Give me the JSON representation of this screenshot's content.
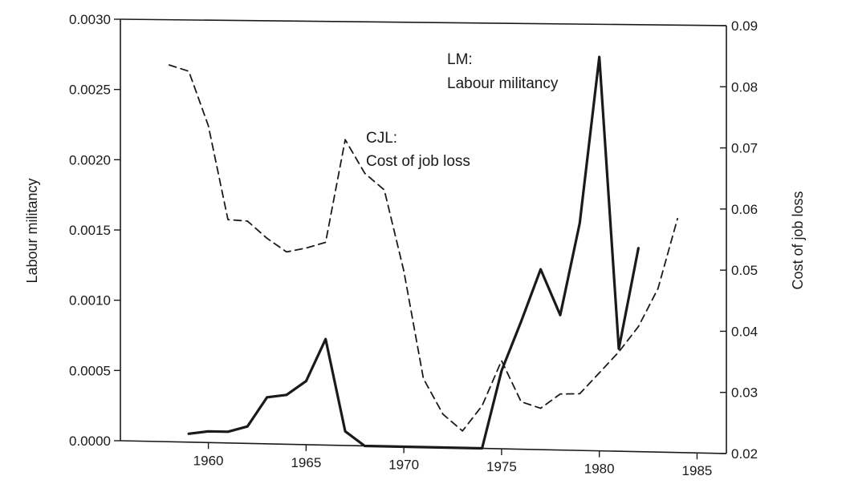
{
  "chart_data": {
    "type": "line",
    "title": "",
    "xlabel": "",
    "ylabel": "Labour militancy",
    "y2label": "Cost of job loss",
    "xlim": [
      1955.5,
      1986.5
    ],
    "ylim": [
      0,
      0.003
    ],
    "y2lim": [
      0.02,
      0.09
    ],
    "x_ticks": [
      1960,
      1965,
      1970,
      1975,
      1980,
      1985
    ],
    "y_ticks": [
      "0.0000",
      "0.0005",
      "0.0010",
      "0.0015",
      "0.0020",
      "0.0025",
      "0.0030"
    ],
    "y2_ticks": [
      "0.02",
      "0.03",
      "0.04",
      "0.05",
      "0.06",
      "0.07",
      "0.08",
      "0.09"
    ],
    "grid": false,
    "series": [
      {
        "name": "LM: Labour militancy",
        "axis": "left",
        "style": "solid",
        "x": [
          1959,
          1960,
          1961,
          1962,
          1963,
          1964,
          1965,
          1966,
          1967,
          1968,
          1969,
          1970,
          1971,
          1972,
          1973,
          1974,
          1975,
          1976,
          1977,
          1978,
          1979,
          1980,
          1981,
          1982
        ],
        "values": [
          6e-05,
          8e-05,
          8e-05,
          0.00012,
          0.00033,
          0.00035,
          0.00045,
          0.00075,
          0.0001,
          0.0,
          0.0,
          0.0,
          0.0,
          0.0,
          0.0,
          0.0,
          0.00055,
          0.0009,
          0.00127,
          0.00095,
          0.0016,
          0.00277,
          0.00072,
          0.00143
        ]
      },
      {
        "name": "CJL: Cost of job loss",
        "axis": "right",
        "style": "dashed",
        "x": [
          1958,
          1959,
          1960,
          1961,
          1962,
          1963,
          1964,
          1965,
          1966,
          1967,
          1968,
          1969,
          1970,
          1971,
          1972,
          1973,
          1974,
          1975,
          1976,
          1977,
          1978,
          1979,
          1980,
          1981,
          1982,
          1983,
          1984
        ],
        "values": [
          0.0825,
          0.0815,
          0.0725,
          0.057,
          0.0568,
          0.054,
          0.0518,
          0.0525,
          0.0535,
          0.0705,
          0.065,
          0.0623,
          0.049,
          0.0313,
          0.0255,
          0.0228,
          0.027,
          0.0345,
          0.0278,
          0.0268,
          0.0292,
          0.0293,
          0.0328,
          0.0363,
          0.0405,
          0.0468,
          0.0583
        ]
      }
    ],
    "annotations": [
      {
        "id": "lm",
        "lines": [
          "LM:",
          "Labour militancy"
        ]
      },
      {
        "id": "cjl",
        "lines": [
          "CJL:",
          "Cost of job loss"
        ]
      }
    ]
  }
}
